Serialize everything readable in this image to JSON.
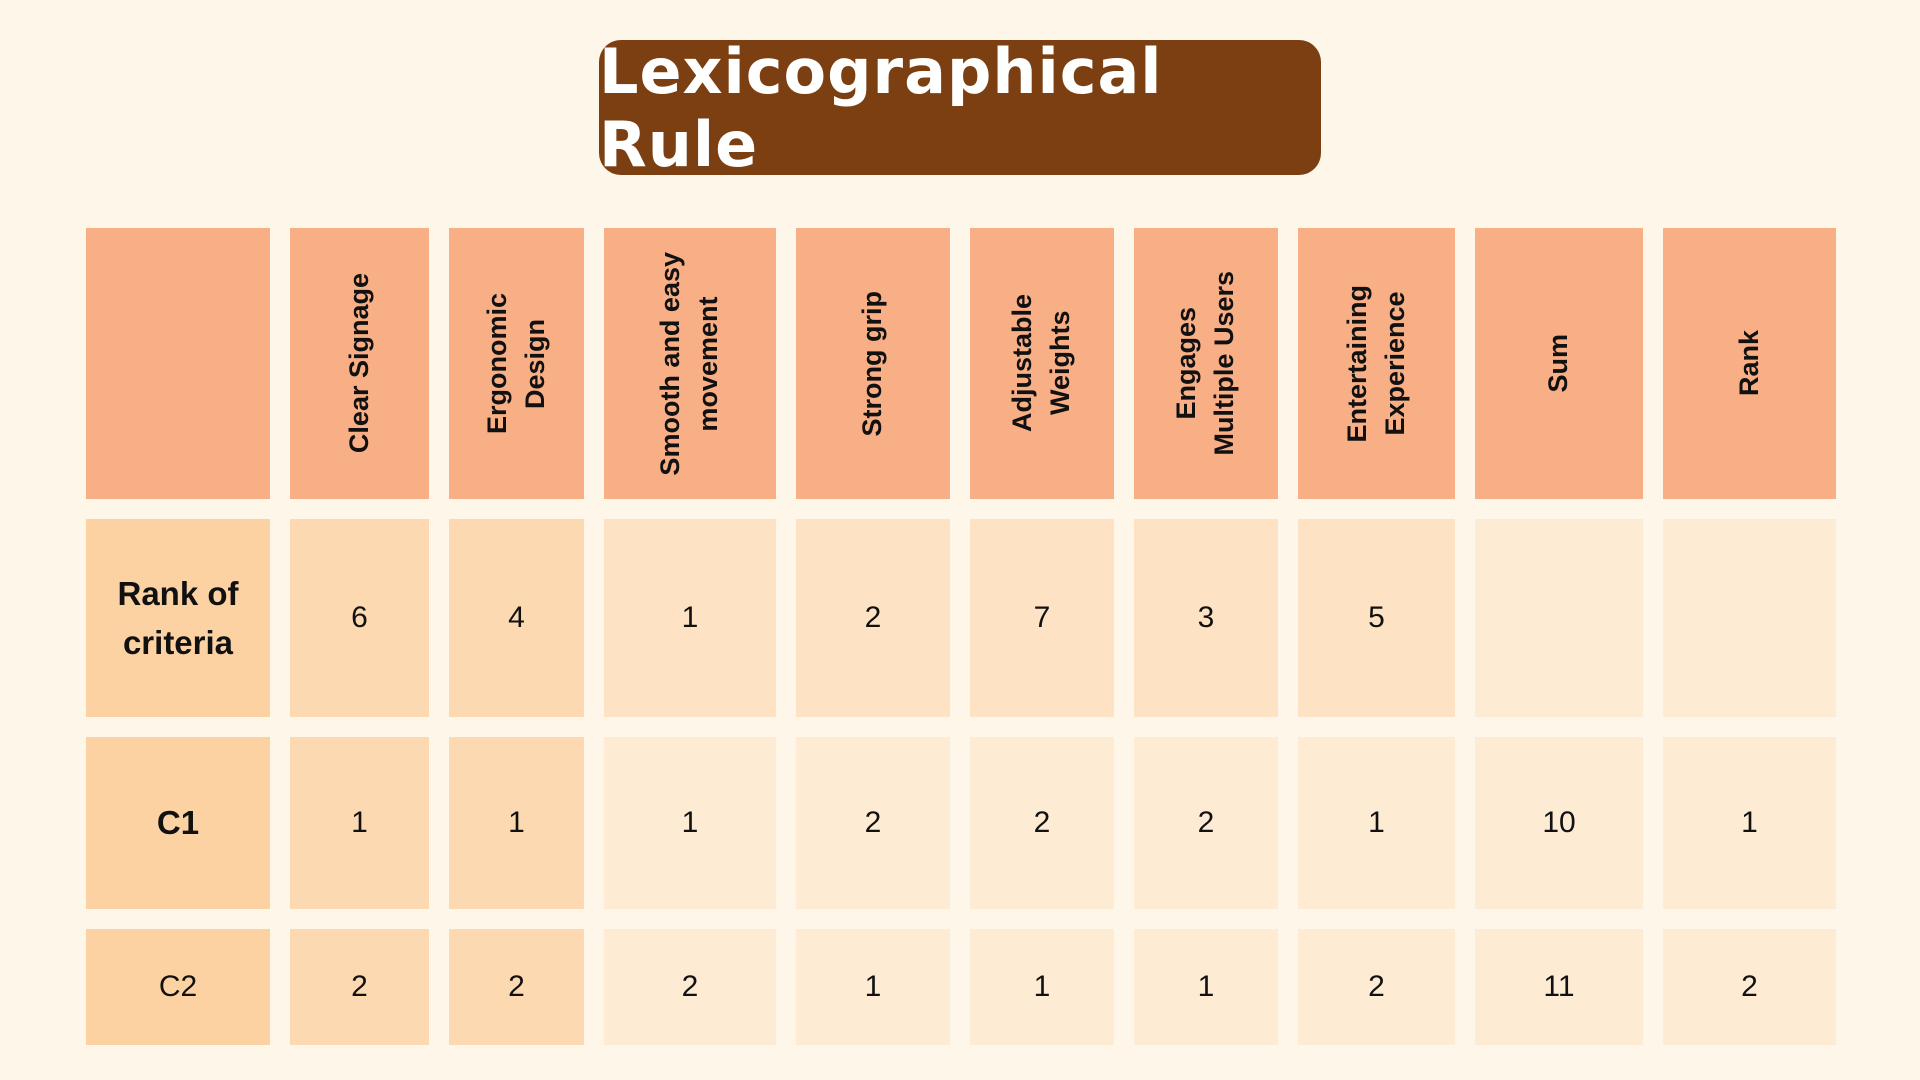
{
  "title": "Lexicographical Rule",
  "columns": [
    "",
    "Clear Signage",
    "Ergonomic Design",
    "Smooth and easy movement",
    "Strong grip",
    "Adjustable Weights",
    "Engages Multiple Users",
    "Entertaining Experience",
    "Sum",
    "Rank"
  ],
  "header_lines": {
    "c1": [
      "Clear Signage"
    ],
    "c2": [
      "Ergonomic",
      "Design"
    ],
    "c3": [
      "Smooth and easy",
      "movement"
    ],
    "c4": [
      "Strong grip"
    ],
    "c5": [
      "Adjustable",
      "Weights"
    ],
    "c6": [
      "Engages",
      "Multiple Users"
    ],
    "c7": [
      "Entertaining",
      "Experience"
    ],
    "c8": [
      "Sum"
    ],
    "c9": [
      "Rank"
    ]
  },
  "rows": [
    {
      "label_lines": [
        "Rank of",
        "criteria"
      ],
      "cells": [
        "6",
        "4",
        "1",
        "2",
        "7",
        "3",
        "5",
        "",
        ""
      ]
    },
    {
      "label": "C1",
      "cells": [
        "1",
        "1",
        "1",
        "2",
        "2",
        "2",
        "1",
        "10",
        "1"
      ]
    },
    {
      "label": "C2",
      "cells": [
        "2",
        "2",
        "2",
        "1",
        "1",
        "1",
        "2",
        "11",
        "2"
      ]
    }
  ],
  "colors": {
    "background": "#fef7e9",
    "title_box": "#7c3f12",
    "header_cell": "#f9af86",
    "row_label_cell": "#fdd2a3"
  }
}
